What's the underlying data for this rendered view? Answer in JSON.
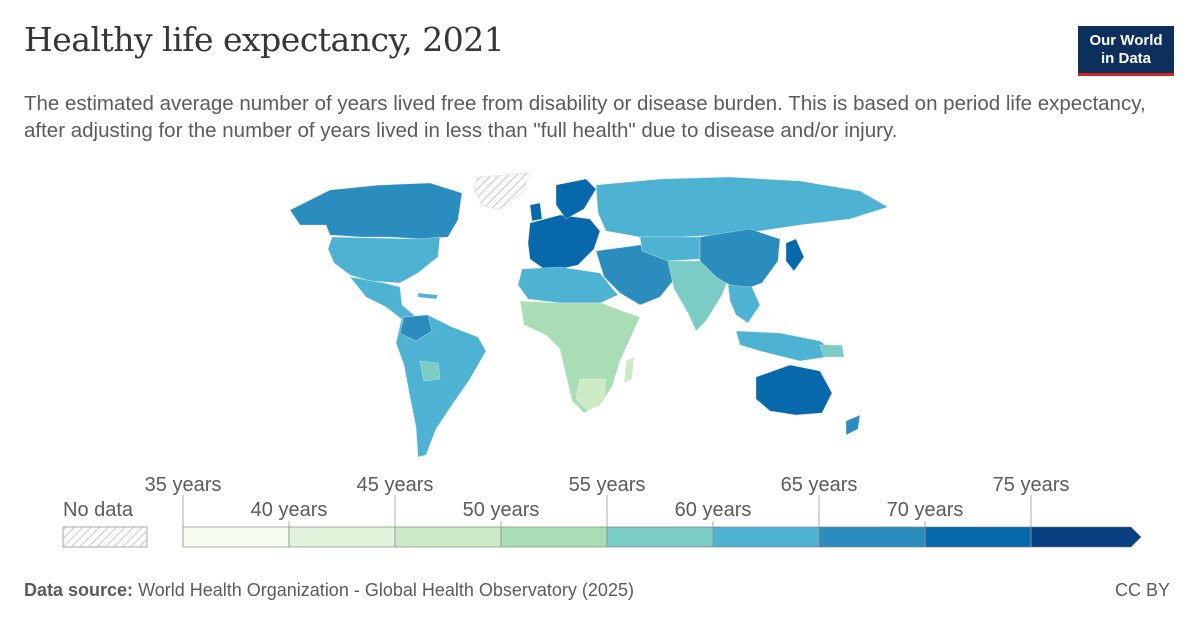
{
  "header": {
    "title": "Healthy life expectancy, 2021",
    "subtitle": "The estimated average number of years lived free from disability or disease burden. This is based on period life expectancy, after adjusting for the number of years lived in less than \"full health\" due to disease and/or injury."
  },
  "logo": {
    "line1": "Our World",
    "line2": "in Data",
    "bg_color": "#0c2f5b",
    "accent_color": "#ce261e"
  },
  "legend": {
    "no_data_label": "No data",
    "top_labels": [
      "35 years",
      "45 years",
      "55 years",
      "65 years",
      "75 years"
    ],
    "bottom_labels": [
      "40 years",
      "50 years",
      "60 years",
      "70 years"
    ],
    "bins": [
      {
        "from": 35,
        "to": 40,
        "color": "#f7fcf0"
      },
      {
        "from": 40,
        "to": 45,
        "color": "#e0f3db"
      },
      {
        "from": 45,
        "to": 50,
        "color": "#ccebc5"
      },
      {
        "from": 50,
        "to": 55,
        "color": "#a8ddb5"
      },
      {
        "from": 55,
        "to": 60,
        "color": "#7bccc4"
      },
      {
        "from": 60,
        "to": 65,
        "color": "#4eb3d3"
      },
      {
        "from": 65,
        "to": 70,
        "color": "#2b8cbe"
      },
      {
        "from": 70,
        "to": 75,
        "color": "#0868ac"
      },
      {
        "from": 75,
        "to": 80,
        "color": "#084081"
      }
    ]
  },
  "map_colors": {
    "north_america": "#4eb3d3",
    "canada": "#2b8cbe",
    "central_america": "#4eb3d3",
    "south_america": "#4eb3d3",
    "europe": "#0868ac",
    "russia": "#4eb3d3",
    "north_africa": "#4eb3d3",
    "subsaharan_africa": "#a8ddb5",
    "middle_east": "#2b8cbe",
    "south_asia": "#7bccc4",
    "east_asia": "#2b8cbe",
    "japan_korea": "#0868ac",
    "southeast_asia": "#4eb3d3",
    "australia": "#0868ac",
    "greenland": "no-data"
  },
  "footer": {
    "source_label": "Data source:",
    "source_text": "World Health Organization - Global Health Observatory (2025)",
    "license": "CC BY"
  }
}
